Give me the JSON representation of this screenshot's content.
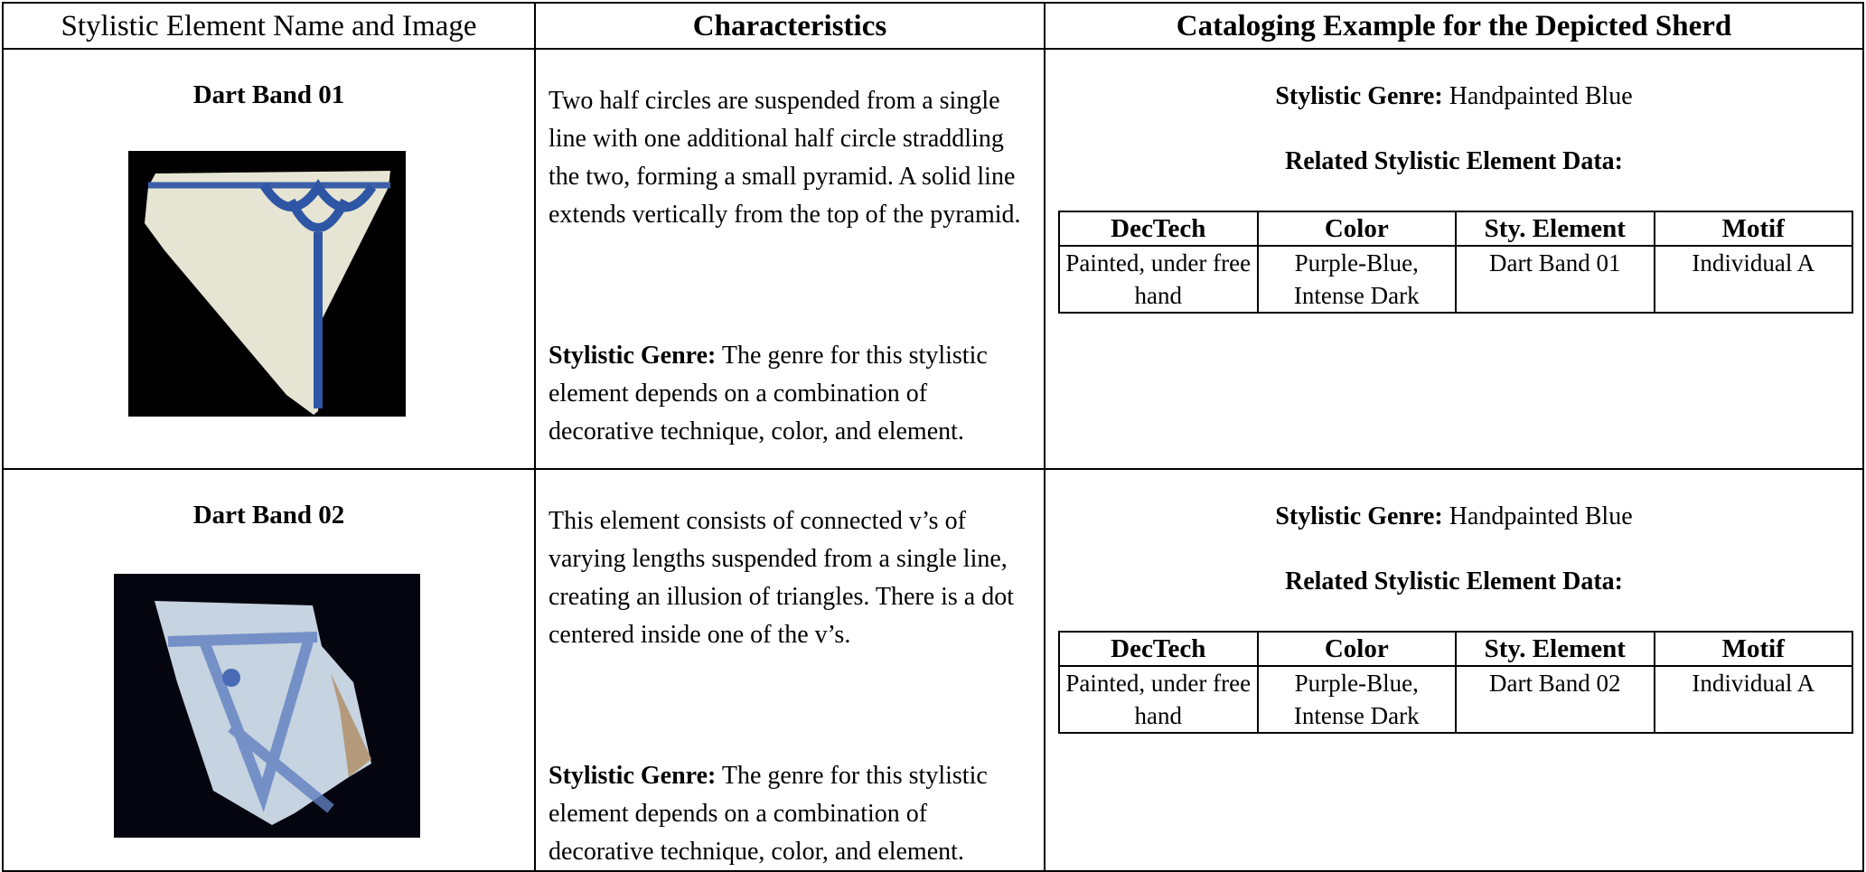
{
  "header": {
    "columns": [
      "Stylistic Element Name and Image",
      "Characteristics",
      "Cataloging Example for the Depicted Sherd"
    ]
  },
  "rows": [
    {
      "name": "Dart Band 01",
      "characteristics": "Two half circles are suspended from a single line with one additional half circle straddling the two, forming a small pyramid. A solid line extends vertically from the top of the pyramid.",
      "genre_label": "Stylistic Genre:",
      "genre_text": "The genre for this stylistic element depends on a combination of decorative technique, color, and element.",
      "example": {
        "genre_label": "Stylistic Genre:",
        "genre_value": "Handpainted Blue",
        "related_title": "Related Stylistic Element Data:",
        "table": {
          "headers": [
            "DecTech",
            "Color",
            "Sty. Element",
            "Motif"
          ],
          "rows": [
            [
              "Painted, under free hand",
              "Purple-Blue, Intense Dark",
              "Dart Band 01",
              "Individual A"
            ]
          ]
        }
      }
    },
    {
      "name": "Dart Band 02",
      "characteristics": "This element consists of connected v’s of varying lengths suspended from a single line, creating an illusion of triangles. There is a dot centered inside one of the v’s.",
      "genre_label": "Stylistic Genre:",
      "genre_text": "The genre for this stylistic element depends on a combination of decorative technique, color, and element.",
      "example": {
        "genre_label": "Stylistic Genre:",
        "genre_value": "Handpainted Blue",
        "related_title": "Related Stylistic Element Data:",
        "table": {
          "headers": [
            "DecTech",
            "Color",
            "Sty. Element",
            "Motif"
          ],
          "rows": [
            [
              "Painted, under free hand",
              "Purple-Blue, Intense Dark",
              "Dart Band 02",
              "Individual A"
            ]
          ]
        }
      }
    }
  ]
}
